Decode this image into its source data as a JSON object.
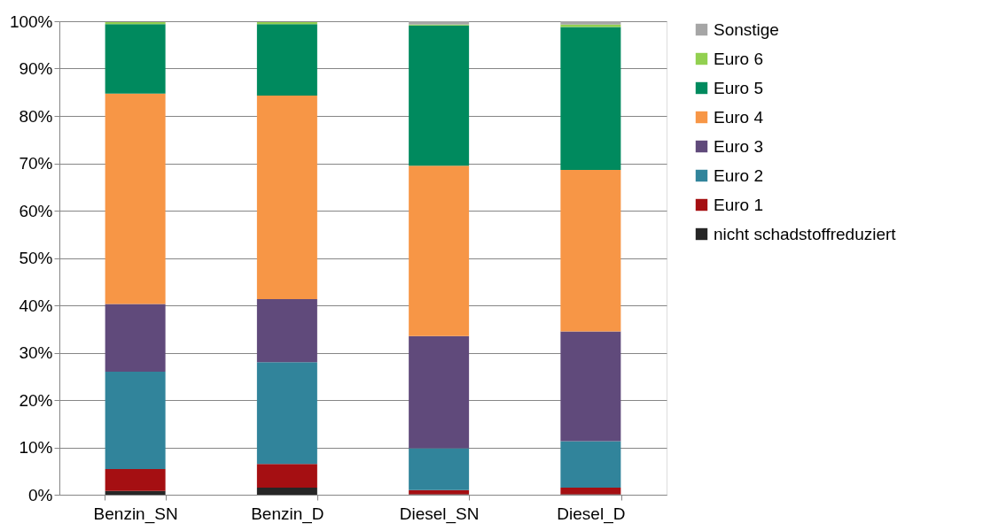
{
  "chart_data": {
    "type": "bar",
    "stacked": true,
    "categories": [
      "Benzin_SN",
      "Benzin_D",
      "Diesel_SN",
      "Diesel_D"
    ],
    "series": [
      {
        "name": "nicht schadstoffreduziert",
        "color": "#262626",
        "values": [
          0.8,
          1.5,
          0.1,
          0.1
        ]
      },
      {
        "name": "Euro 1",
        "color": "#a50f12",
        "values": [
          4.6,
          5.0,
          0.9,
          1.4
        ]
      },
      {
        "name": "Euro 2",
        "color": "#31849b",
        "values": [
          20.6,
          21.5,
          8.8,
          9.8
        ]
      },
      {
        "name": "Euro 3",
        "color": "#604a7b",
        "values": [
          14.3,
          13.3,
          23.7,
          23.2
        ]
      },
      {
        "name": "Euro 4",
        "color": "#f79646",
        "values": [
          44.4,
          43.0,
          36.0,
          34.1
        ]
      },
      {
        "name": "Euro 5",
        "color": "#008a5e",
        "values": [
          14.7,
          15.1,
          29.6,
          30.2
        ]
      },
      {
        "name": "Euro 6",
        "color": "#92d050",
        "values": [
          0.4,
          0.4,
          0.2,
          0.5
        ]
      },
      {
        "name": "Sonstige",
        "color": "#a6a6a6",
        "values": [
          null,
          null,
          0.7,
          0.7
        ]
      }
    ],
    "ylim": [
      0,
      100
    ],
    "yticks": [
      {
        "value": 0,
        "label": "0%"
      },
      {
        "value": 10,
        "label": "10%"
      },
      {
        "value": 20,
        "label": "20%"
      },
      {
        "value": 30,
        "label": "30%"
      },
      {
        "value": 40,
        "label": "40%"
      },
      {
        "value": 50,
        "label": "50%"
      },
      {
        "value": 60,
        "label": "60%"
      },
      {
        "value": 70,
        "label": "70%"
      },
      {
        "value": 80,
        "label": "80%"
      },
      {
        "value": 90,
        "label": "90%"
      },
      {
        "value": 100,
        "label": "100%"
      }
    ],
    "grid": "y",
    "legend": "right"
  }
}
